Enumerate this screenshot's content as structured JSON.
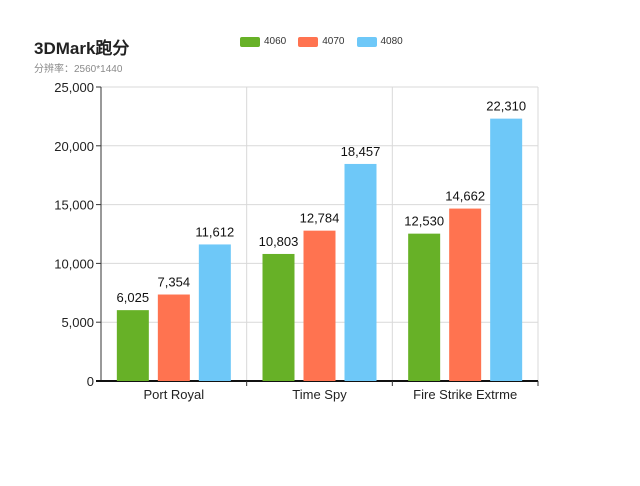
{
  "chart_data": {
    "type": "bar",
    "title": "3DMark跑分",
    "subtitle": "分辨率：2560*1440",
    "categories": [
      "Port Royal",
      "Time Spy",
      "Fire Strike Extrme"
    ],
    "series": [
      {
        "name": "4060",
        "color": "#67b127",
        "values": [
          6025,
          10803,
          12530
        ],
        "labels": [
          "6,025",
          "10,803",
          "12,530"
        ]
      },
      {
        "name": "4070",
        "color": "#ff7350",
        "values": [
          7354,
          12784,
          14662
        ],
        "labels": [
          "7,354",
          "12,784",
          "14,662"
        ]
      },
      {
        "name": "4080",
        "color": "#6ec8f8",
        "values": [
          11612,
          18457,
          22310
        ],
        "labels": [
          "11,612",
          "18,457",
          "22,310"
        ]
      }
    ],
    "yticks": [
      0,
      5000,
      10000,
      15000,
      20000,
      25000
    ],
    "ytick_labels": [
      "0",
      "5,000",
      "10,000",
      "15,000",
      "20,000",
      "25,000"
    ],
    "ylim": [
      0,
      25000
    ],
    "xlabel": "",
    "ylabel": "",
    "grid": true,
    "legend_position": "top"
  }
}
